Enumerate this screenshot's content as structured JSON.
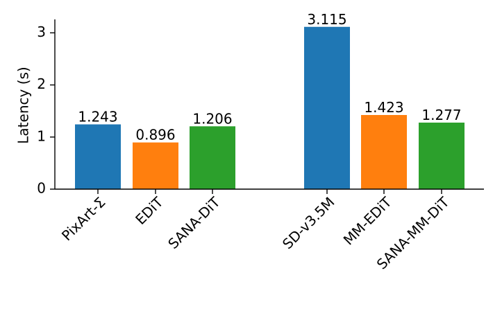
{
  "chart_data": {
    "type": "bar",
    "ylabel": "Latency (s)",
    "xlabel": "",
    "title": "",
    "ylim": [
      0,
      3.3
    ],
    "yticks": [
      0,
      1,
      2,
      3
    ],
    "grid": false,
    "categories": [
      "PixArt-Σ",
      "EDiT",
      "SANA-DiT",
      "SD-v3.5M",
      "MM-EDiT",
      "SANA-MM-DiT"
    ],
    "values": [
      1.243,
      0.896,
      1.206,
      3.115,
      1.423,
      1.277
    ],
    "value_labels": [
      "1.243",
      "0.896",
      "1.206",
      "3.115",
      "1.423",
      "1.277"
    ],
    "groups": [
      [
        "PixArt-Σ",
        "EDiT",
        "SANA-DiT"
      ],
      [
        "SD-v3.5M",
        "MM-EDiT",
        "SANA-MM-DiT"
      ]
    ],
    "colors": [
      "#1f77b4",
      "#ff7f0e",
      "#2ca02c",
      "#1f77b4",
      "#ff7f0e",
      "#2ca02c"
    ]
  }
}
